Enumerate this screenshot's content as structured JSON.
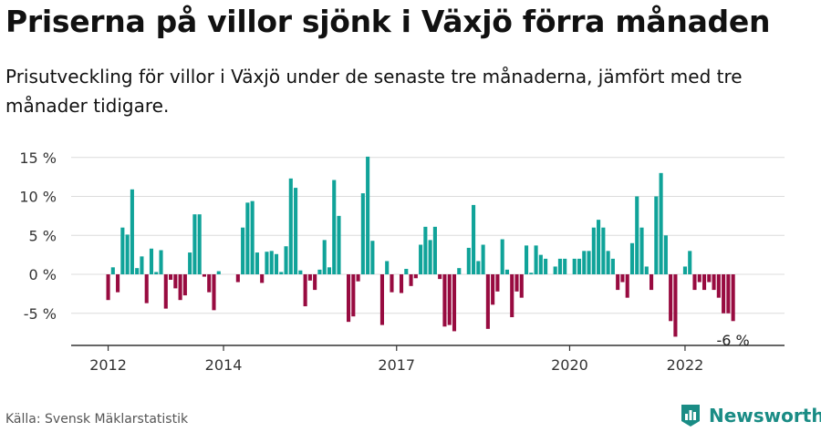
{
  "title": "Priserna på villor sjönk i Växjö förra månaden",
  "subtitle": "Prisutveckling för villor i Växjö under de senaste tre månaderna, jämfört med tre månader tidigare.",
  "source": "Källa: Svensk Mäklarstatistik",
  "brand": {
    "name": "Newsworthy",
    "logo_icon": "newsworthy-logo-icon"
  },
  "colors": {
    "positive": "#10a399",
    "negative": "#980b40",
    "grid": "#dcdcdc",
    "axis": "#333333"
  },
  "chart_data": {
    "type": "bar",
    "title": "Priserna på villor sjönk i Växjö förra månaden",
    "xlabel": "",
    "ylabel": "",
    "ylim": [
      -9,
      15.5
    ],
    "y_ticks": [
      {
        "value": -5,
        "label": "-5 %"
      },
      {
        "value": 0,
        "label": "0 %"
      },
      {
        "value": 5,
        "label": "5 %"
      },
      {
        "value": 10,
        "label": "10 %"
      },
      {
        "value": 15,
        "label": "15 %"
      }
    ],
    "x_ticks": [
      {
        "date": "2012-01",
        "label": "2012"
      },
      {
        "date": "2014-01",
        "label": "2014"
      },
      {
        "date": "2017-01",
        "label": "2017"
      },
      {
        "date": "2020-01",
        "label": "2020"
      },
      {
        "date": "2022-01",
        "label": "2022"
      }
    ],
    "grid": true,
    "last_value_label": "-6 %",
    "start": "2012-01",
    "end": "2022-12",
    "values": [
      -3.3,
      0.9,
      -2.3,
      6.0,
      5.1,
      10.9,
      0.8,
      2.3,
      -3.7,
      3.3,
      0.3,
      3.1,
      -4.4,
      -0.7,
      -1.8,
      -3.3,
      -2.7,
      2.8,
      7.7,
      7.7,
      -0.3,
      -2.3,
      -4.6,
      0.4,
      0.0,
      0.0,
      0.0,
      -1.0,
      6.0,
      9.2,
      9.4,
      2.8,
      -1.1,
      2.9,
      3.0,
      2.6,
      0.3,
      3.6,
      12.3,
      11.1,
      0.5,
      -4.1,
      -0.8,
      -2.0,
      0.6,
      4.4,
      0.9,
      12.1,
      7.5,
      0.0,
      -6.1,
      -5.4,
      -0.9,
      10.4,
      15.1,
      4.3,
      0.0,
      -6.5,
      1.7,
      -2.3,
      0.0,
      -2.4,
      0.7,
      -1.5,
      -0.5,
      3.8,
      6.1,
      4.4,
      6.1,
      -0.6,
      -6.7,
      -6.5,
      -7.3,
      0.8,
      0.0,
      3.4,
      8.9,
      1.7,
      3.8,
      -7.0,
      -3.9,
      -2.2,
      4.5,
      0.6,
      -5.5,
      -2.2,
      -3.0,
      3.7,
      0.2,
      3.7,
      2.5,
      2.0,
      0.0,
      1.0,
      2.0,
      2.0,
      0.0,
      2.0,
      2.0,
      3.0,
      3.0,
      6.0,
      7.0,
      6.0,
      3.0,
      2.0,
      -2.0,
      -1.0,
      -3.0,
      4.0,
      10.0,
      6.0,
      1.0,
      -2.0,
      10.0,
      13.0,
      5.0,
      -6.0,
      -8.0,
      0.0,
      1.0,
      3.0,
      -2.0,
      -1.0,
      -2.0,
      -1.0,
      -2.0,
      -3.0,
      -5.0,
      -5.0,
      -6.0
    ]
  }
}
